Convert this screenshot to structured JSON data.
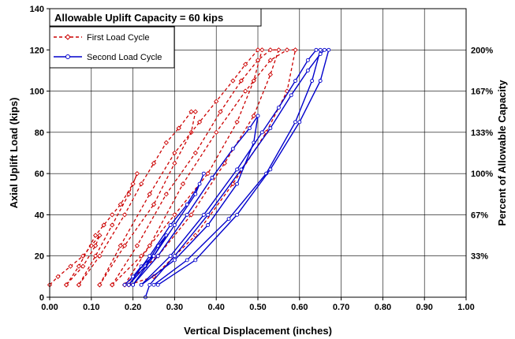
{
  "chart_data": {
    "type": "line",
    "title": "Allowable Uplift Capacity = 60 kips",
    "xlabel": "Vertical Displacement (inches)",
    "ylabel": "Axial Uplift Load (kips)",
    "y2label": "Percent of Allowable Capacity",
    "xlim": [
      0,
      1.0
    ],
    "ylim": [
      0,
      140
    ],
    "grid": true,
    "legend_position": "top-left",
    "x_ticks": [
      "0.00",
      "0.10",
      "0.20",
      "0.30",
      "0.40",
      "0.50",
      "0.60",
      "0.70",
      "0.80",
      "0.90",
      "1.00"
    ],
    "y_ticks": [
      "0",
      "20",
      "40",
      "60",
      "80",
      "100",
      "120",
      "140"
    ],
    "y2_ticks": [
      {
        "value": 20,
        "label": "33%"
      },
      {
        "value": 40,
        "label": "67%"
      },
      {
        "value": 60,
        "label": "100%"
      },
      {
        "value": 80,
        "label": "133%"
      },
      {
        "value": 100,
        "label": "167%"
      },
      {
        "value": 120,
        "label": "200%"
      }
    ],
    "series": [
      {
        "name": "First Load Cycle",
        "color": "#cc0000",
        "style": "dashed",
        "marker": "diamond",
        "cycles": [
          [
            [
              0.0,
              6
            ],
            [
              0.02,
              10
            ],
            [
              0.05,
              15
            ],
            [
              0.08,
              20
            ],
            [
              0.1,
              25
            ],
            [
              0.12,
              30
            ],
            [
              0.11,
              25
            ],
            [
              0.08,
              15
            ],
            [
              0.04,
              6
            ]
          ],
          [
            [
              0.04,
              6
            ],
            [
              0.07,
              15
            ],
            [
              0.11,
              30
            ],
            [
              0.13,
              35
            ],
            [
              0.15,
              40
            ],
            [
              0.17,
              45
            ],
            [
              0.2,
              55
            ],
            [
              0.21,
              60
            ],
            [
              0.19,
              50
            ],
            [
              0.15,
              35
            ],
            [
              0.11,
              20
            ],
            [
              0.07,
              6
            ]
          ],
          [
            [
              0.07,
              6
            ],
            [
              0.12,
              20
            ],
            [
              0.18,
              40
            ],
            [
              0.22,
              55
            ],
            [
              0.25,
              65
            ],
            [
              0.28,
              75
            ],
            [
              0.31,
              82
            ],
            [
              0.34,
              90
            ],
            [
              0.35,
              90
            ],
            [
              0.34,
              80
            ],
            [
              0.3,
              65
            ],
            [
              0.25,
              45
            ],
            [
              0.18,
              25
            ],
            [
              0.12,
              6
            ]
          ],
          [
            [
              0.12,
              6
            ],
            [
              0.17,
              25
            ],
            [
              0.24,
              50
            ],
            [
              0.3,
              70
            ],
            [
              0.36,
              85
            ],
            [
              0.4,
              95
            ],
            [
              0.44,
              105
            ],
            [
              0.47,
              113
            ],
            [
              0.5,
              120
            ],
            [
              0.51,
              120
            ],
            [
              0.49,
              105
            ],
            [
              0.45,
              85
            ],
            [
              0.38,
              60
            ],
            [
              0.3,
              40
            ],
            [
              0.22,
              20
            ],
            [
              0.15,
              6
            ]
          ],
          [
            [
              0.15,
              6
            ],
            [
              0.21,
              25
            ],
            [
              0.28,
              50
            ],
            [
              0.35,
              70
            ],
            [
              0.41,
              90
            ],
            [
              0.46,
              105
            ],
            [
              0.5,
              115
            ],
            [
              0.53,
              120
            ],
            [
              0.55,
              120
            ],
            [
              0.53,
              108
            ],
            [
              0.49,
              88
            ],
            [
              0.42,
              65
            ],
            [
              0.34,
              40
            ],
            [
              0.26,
              20
            ],
            [
              0.18,
              6
            ]
          ],
          [
            [
              0.18,
              6
            ],
            [
              0.24,
              25
            ],
            [
              0.32,
              55
            ],
            [
              0.4,
              80
            ],
            [
              0.47,
              100
            ],
            [
              0.53,
              115
            ],
            [
              0.57,
              120
            ],
            [
              0.59,
              120
            ],
            [
              0.57,
              100
            ],
            [
              0.52,
              80
            ],
            [
              0.44,
              55
            ],
            [
              0.35,
              30
            ],
            [
              0.25,
              10
            ],
            [
              0.19,
              6
            ]
          ]
        ]
      },
      {
        "name": "Second Load Cycle",
        "color": "#0000cc",
        "style": "solid",
        "marker": "circle",
        "cycles": [
          [
            [
              0.18,
              6
            ],
            [
              0.2,
              10
            ],
            [
              0.22,
              15
            ],
            [
              0.25,
              20
            ],
            [
              0.28,
              30
            ],
            [
              0.26,
              25
            ],
            [
              0.23,
              15
            ],
            [
              0.19,
              6
            ]
          ],
          [
            [
              0.19,
              6
            ],
            [
              0.24,
              20
            ],
            [
              0.29,
              35
            ],
            [
              0.33,
              45
            ],
            [
              0.36,
              55
            ],
            [
              0.37,
              60
            ],
            [
              0.35,
              50
            ],
            [
              0.3,
              35
            ],
            [
              0.25,
              20
            ],
            [
              0.2,
              6
            ]
          ],
          [
            [
              0.2,
              6
            ],
            [
              0.26,
              20
            ],
            [
              0.33,
              40
            ],
            [
              0.39,
              58
            ],
            [
              0.44,
              72
            ],
            [
              0.48,
              82
            ],
            [
              0.5,
              88
            ],
            [
              0.49,
              75
            ],
            [
              0.45,
              55
            ],
            [
              0.38,
              35
            ],
            [
              0.3,
              18
            ],
            [
              0.22,
              6
            ]
          ],
          [
            [
              0.22,
              6
            ],
            [
              0.29,
              20
            ],
            [
              0.37,
              40
            ],
            [
              0.45,
              62
            ],
            [
              0.51,
              80
            ],
            [
              0.55,
              92
            ],
            [
              0.59,
              105
            ],
            [
              0.62,
              115
            ],
            [
              0.64,
              120
            ],
            [
              0.65,
              120
            ],
            [
              0.63,
              105
            ],
            [
              0.59,
              85
            ],
            [
              0.52,
              60
            ],
            [
              0.43,
              38
            ],
            [
              0.33,
              18
            ],
            [
              0.25,
              6
            ]
          ],
          [
            [
              0.23,
              0
            ],
            [
              0.24,
              6
            ],
            [
              0.3,
              20
            ],
            [
              0.38,
              40
            ],
            [
              0.46,
              62
            ],
            [
              0.53,
              82
            ],
            [
              0.58,
              98
            ],
            [
              0.62,
              110
            ],
            [
              0.65,
              118
            ],
            [
              0.66,
              120
            ],
            [
              0.67,
              120
            ],
            [
              0.65,
              105
            ],
            [
              0.6,
              85
            ],
            [
              0.53,
              62
            ],
            [
              0.45,
              40
            ],
            [
              0.35,
              18
            ],
            [
              0.26,
              6
            ]
          ]
        ]
      }
    ]
  }
}
